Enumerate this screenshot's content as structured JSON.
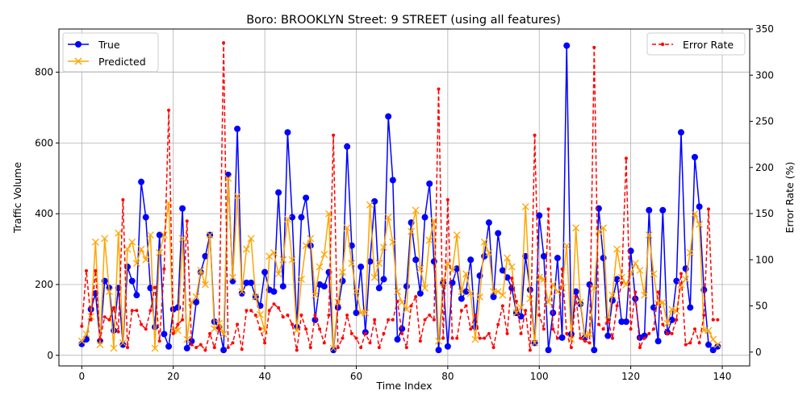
{
  "chart_data": {
    "type": "line",
    "title": "Boro: BROOKLYN Street: 9 STREET (using all features)",
    "xlabel": "Time Index",
    "ylabel": "Traffic Volume",
    "y2label": "Error Rate (%)",
    "xlim": [
      -5,
      146
    ],
    "ylim": [
      -30,
      922
    ],
    "y2lim": [
      -15,
      350
    ],
    "xticks": [
      0,
      20,
      40,
      60,
      80,
      100,
      120,
      140
    ],
    "yticks": [
      0,
      200,
      400,
      600,
      800
    ],
    "y2ticks": [
      0,
      50,
      100,
      150,
      200,
      250,
      300,
      350
    ],
    "grid": true,
    "legend_left": "top-left",
    "legend_right": "top-right",
    "colors": {
      "true": "#0000ff",
      "predicted": "#ffa500",
      "error": "#ff0000"
    },
    "series": [
      {
        "name": "True",
        "axis": "left",
        "style": "solid",
        "marker": "circle",
        "values": [
          32,
          45,
          130,
          175,
          40,
          210,
          190,
          70,
          190,
          30,
          250,
          210,
          170,
          490,
          390,
          190,
          80,
          340,
          60,
          25,
          130,
          135,
          415,
          20,
          40,
          150,
          235,
          280,
          340,
          95,
          80,
          15,
          510,
          210,
          640,
          175,
          205,
          205,
          165,
          140,
          235,
          185,
          180,
          460,
          195,
          630,
          390,
          80,
          390,
          445,
          310,
          100,
          200,
          195,
          235,
          15,
          135,
          210,
          590,
          310,
          120,
          250,
          65,
          265,
          435,
          190,
          215,
          675,
          495,
          45,
          75,
          195,
          375,
          270,
          175,
          390,
          485,
          265,
          15,
          205,
          25,
          205,
          245,
          160,
          180,
          270,
          80,
          225,
          280,
          375,
          165,
          345,
          240,
          220,
          190,
          120,
          110,
          280,
          185,
          35,
          395,
          280,
          15,
          120,
          275,
          50,
          875,
          60,
          180,
          145,
          50,
          200,
          15,
          415,
          275,
          55,
          155,
          215,
          95,
          95,
          295,
          160,
          50,
          55,
          410,
          135,
          40,
          410,
          65,
          100,
          210,
          630,
          245,
          135,
          560,
          420,
          185,
          30,
          15,
          25
        ]
      },
      {
        "name": "Predicted",
        "axis": "left",
        "style": "solid",
        "marker": "x",
        "values": [
          40,
          60,
          110,
          320,
          30,
          330,
          180,
          20,
          345,
          35,
          300,
          320,
          260,
          300,
          270,
          340,
          20,
          290,
          340,
          430,
          70,
          70,
          330,
          45,
          150,
          165,
          240,
          200,
          340,
          75,
          90,
          60,
          500,
          220,
          450,
          180,
          300,
          330,
          165,
          115,
          70,
          280,
          290,
          230,
          270,
          385,
          270,
          70,
          215,
          310,
          330,
          170,
          250,
          285,
          400,
          20,
          150,
          235,
          360,
          260,
          180,
          120,
          120,
          425,
          220,
          260,
          305,
          390,
          320,
          180,
          150,
          130,
          350,
          410,
          245,
          190,
          325,
          380,
          40,
          205,
          260,
          240,
          340,
          180,
          230,
          175,
          45,
          165,
          320,
          290,
          180,
          180,
          170,
          275,
          250,
          120,
          135,
          420,
          160,
          35,
          220,
          215,
          150,
          200,
          180,
          190,
          310,
          45,
          360,
          150,
          55,
          60,
          190,
          350,
          360,
          100,
          170,
          300,
          220,
          200,
          230,
          260,
          240,
          170,
          340,
          230,
          145,
          150,
          90,
          130,
          125,
          200,
          215,
          290,
          400,
          370,
          70,
          70,
          45,
          30
        ]
      },
      {
        "name": "Error Rate",
        "axis": "right",
        "style": "dashed",
        "marker": "point",
        "values": [
          28,
          88,
          35,
          88,
          14,
          38,
          35,
          48,
          22,
          165,
          5,
          45,
          45,
          30,
          25,
          45,
          70,
          12,
          90,
          262,
          20,
          30,
          35,
          142,
          8,
          5,
          8,
          2,
          20,
          5,
          25,
          335,
          5,
          10,
          30,
          3,
          45,
          45,
          40,
          25,
          10,
          45,
          52,
          48,
          38,
          40,
          30,
          2,
          40,
          25,
          5,
          40,
          25,
          10,
          40,
          235,
          5,
          15,
          40,
          20,
          15,
          5,
          20,
          10,
          35,
          5,
          20,
          35,
          35,
          55,
          20,
          5,
          50,
          60,
          12,
          35,
          40,
          35,
          285,
          15,
          165,
          15,
          15,
          45,
          50,
          25,
          40,
          15,
          15,
          20,
          5,
          30,
          50,
          20,
          80,
          55,
          20,
          45,
          2,
          235,
          40,
          25,
          155,
          25,
          15,
          90,
          20,
          5,
          60,
          15,
          12,
          10,
          330,
          30,
          25,
          35,
          15,
          50,
          75,
          210,
          25,
          65,
          5,
          15,
          20,
          25,
          65,
          30,
          20,
          20,
          35,
          85,
          8,
          10,
          25,
          10,
          40,
          155,
          35,
          35
        ]
      }
    ]
  }
}
